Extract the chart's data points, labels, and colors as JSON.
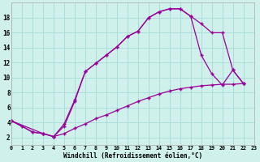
{
  "xlabel": "Windchill (Refroidissement éolien,°C)",
  "bg_color": "#cff0eb",
  "grid_color": "#aaddda",
  "line_color": "#990099",
  "xlim": [
    0,
    23
  ],
  "ylim": [
    1,
    20
  ],
  "xticks": [
    0,
    1,
    2,
    3,
    4,
    5,
    6,
    7,
    8,
    9,
    10,
    11,
    12,
    13,
    14,
    15,
    16,
    17,
    18,
    19,
    20,
    21,
    22,
    23
  ],
  "yticks": [
    2,
    4,
    6,
    8,
    10,
    12,
    14,
    16,
    18
  ],
  "series1_x": [
    0,
    1,
    2,
    3,
    4,
    5,
    6,
    7,
    8,
    9,
    10,
    11,
    12,
    13,
    14,
    15,
    16,
    17,
    18,
    19,
    20,
    21,
    22
  ],
  "series1_y": [
    4.2,
    3.5,
    2.7,
    2.5,
    2.1,
    3.8,
    7.0,
    10.8,
    11.9,
    13.0,
    14.1,
    15.5,
    16.2,
    18.0,
    18.8,
    19.2,
    19.2,
    18.2,
    17.2,
    16.0,
    16.0,
    11.0,
    9.2
  ],
  "series2_x": [
    0,
    2,
    3,
    4,
    5,
    6,
    7,
    8,
    9,
    10,
    11,
    12,
    13,
    14,
    15,
    16,
    17,
    18,
    19,
    20,
    21,
    22
  ],
  "series2_y": [
    4.2,
    2.7,
    2.5,
    2.1,
    2.5,
    3.2,
    3.8,
    4.5,
    5.0,
    5.6,
    6.2,
    6.8,
    7.3,
    7.8,
    8.2,
    8.5,
    8.7,
    8.9,
    9.0,
    9.1,
    9.1,
    9.2
  ],
  "series3_x": [
    0,
    3,
    4,
    5,
    6,
    7,
    8,
    9,
    10,
    11,
    12,
    13,
    14,
    15,
    16,
    17,
    18,
    19,
    20,
    21,
    22
  ],
  "series3_y": [
    4.2,
    2.5,
    2.1,
    3.5,
    6.8,
    10.8,
    11.9,
    13.0,
    14.1,
    15.5,
    16.2,
    18.0,
    18.8,
    19.2,
    19.2,
    18.2,
    13.0,
    10.5,
    9.0,
    11.0,
    9.2
  ]
}
